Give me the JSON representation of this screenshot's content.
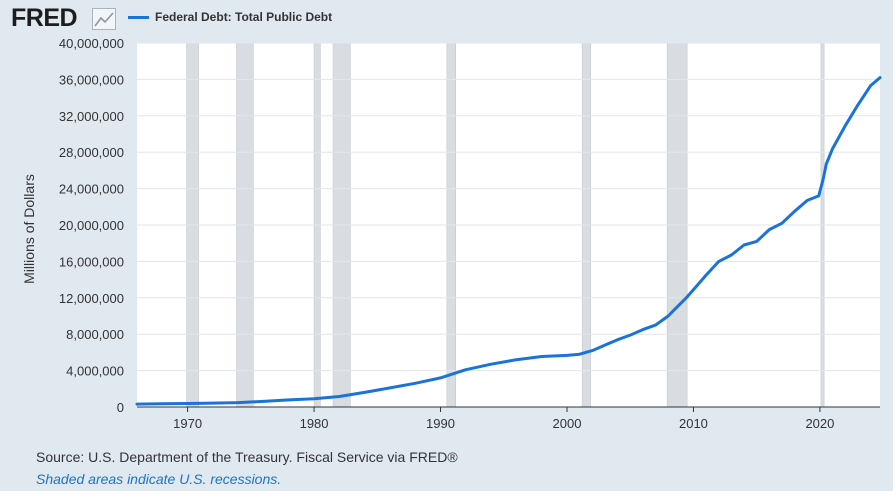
{
  "header": {
    "logo": "FRED",
    "logo_icon": "line-chart-icon",
    "legend_label": "Federal Debt: Total Public Debt"
  },
  "footer": {
    "source": "Source: U.S. Department of the Treasury. Fiscal Service via FRED®",
    "note": "Shaded areas indicate U.S. recessions."
  },
  "colors": {
    "series": "#1a73d9",
    "recession": "#d9dde2",
    "plot_bg": "#ffffff",
    "page_bg": "#e1e9f0",
    "grid": "#e3e6ea"
  },
  "chart_data": {
    "type": "line",
    "title": "",
    "xlabel": "",
    "ylabel": "Millions of Dollars",
    "xlim": [
      1966.0,
      2024.75
    ],
    "ylim": [
      0,
      40000000
    ],
    "yticks": [
      0,
      4000000,
      8000000,
      12000000,
      16000000,
      20000000,
      24000000,
      28000000,
      32000000,
      36000000,
      40000000
    ],
    "ytick_labels": [
      "0",
      "4,000,000",
      "8,000,000",
      "12,000,000",
      "16,000,000",
      "20,000,000",
      "24,000,000",
      "28,000,000",
      "32,000,000",
      "36,000,000",
      "40,000,000"
    ],
    "xticks": [
      1970,
      1980,
      1990,
      2000,
      2010,
      2020
    ],
    "xtick_labels": [
      "1970",
      "1980",
      "1990",
      "2000",
      "2010",
      "2020"
    ],
    "grid": "horizontal",
    "legend": "top-left",
    "recessions": [
      [
        1969.92,
        1970.87
      ],
      [
        1973.87,
        1975.2
      ],
      [
        1980.0,
        1980.5
      ],
      [
        1981.5,
        1982.87
      ],
      [
        1990.5,
        1991.2
      ],
      [
        2001.2,
        2001.87
      ],
      [
        2007.92,
        2009.5
      ],
      [
        2020.08,
        2020.33
      ]
    ],
    "series": [
      {
        "x": [
          1966,
          1968,
          1970,
          1972,
          1974,
          1976,
          1978,
          1980,
          1982,
          1984,
          1986,
          1988,
          1990,
          1992,
          1994,
          1996,
          1998,
          2000,
          2001,
          2002,
          2003,
          2004,
          2005,
          2006,
          2007,
          2008,
          2008.5,
          2009,
          2009.5,
          2010,
          2011,
          2012,
          2013,
          2014,
          2015,
          2016,
          2017,
          2018,
          2019,
          2019.9,
          2020.25,
          2020.5,
          2021,
          2022,
          2023,
          2024,
          2024.75
        ],
        "y": [
          320000,
          350000,
          380000,
          430000,
          480000,
          620000,
          780000,
          900000,
          1150000,
          1600000,
          2100000,
          2600000,
          3200000,
          4100000,
          4700000,
          5200000,
          5550000,
          5670000,
          5800000,
          6200000,
          6800000,
          7400000,
          7900000,
          8500000,
          9000000,
          10000000,
          10700000,
          11400000,
          12100000,
          12900000,
          14500000,
          16000000,
          16700000,
          17800000,
          18200000,
          19500000,
          20200000,
          21500000,
          22700000,
          23200000,
          25000000,
          26700000,
          28400000,
          30900000,
          33200000,
          35300000,
          36200000
        ]
      }
    ]
  }
}
